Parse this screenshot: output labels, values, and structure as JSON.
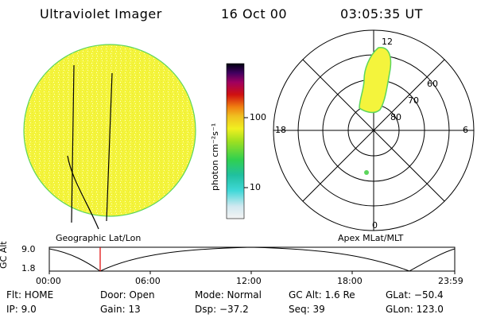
{
  "header": {
    "title": "Ultraviolet Imager",
    "date": "16 Oct 00",
    "time": "03:05:35 UT"
  },
  "colorbar": {
    "unit_label": "photon cm⁻²s⁻¹",
    "ticks": [
      "100",
      "10"
    ]
  },
  "panels": {
    "left_caption": "Geographic Lat/Lon",
    "right_caption": "Apex MLat/MLT"
  },
  "polar": {
    "mlt_labels": {
      "top": "12",
      "left": "18",
      "right": "6",
      "bottom": "0"
    },
    "lat_labels": [
      "60",
      "70",
      "80"
    ]
  },
  "altitude": {
    "axis_label": "GC Alt",
    "y_ticks": [
      "9.0",
      "1.8"
    ],
    "x_ticks": [
      "00:00",
      "06:00",
      "12:00",
      "18:00",
      "23:59"
    ]
  },
  "status": {
    "flt": "Flt: HOME",
    "ip": "IP:  9.0",
    "door": "Door: Open",
    "gain": "Gain: 13",
    "mode": "Mode: Normal",
    "dsp": "Dsp:  −37.2",
    "gc_alt": "GC Alt: 1.6 Re",
    "seq": "Seq: 39",
    "glat": "GLat: −50.4",
    "glon": "GLon: 123.0"
  },
  "colors": {
    "disk_fill": "#f2f23a",
    "disk_edge": "#5cd65c",
    "marker_red": "#e00000"
  }
}
